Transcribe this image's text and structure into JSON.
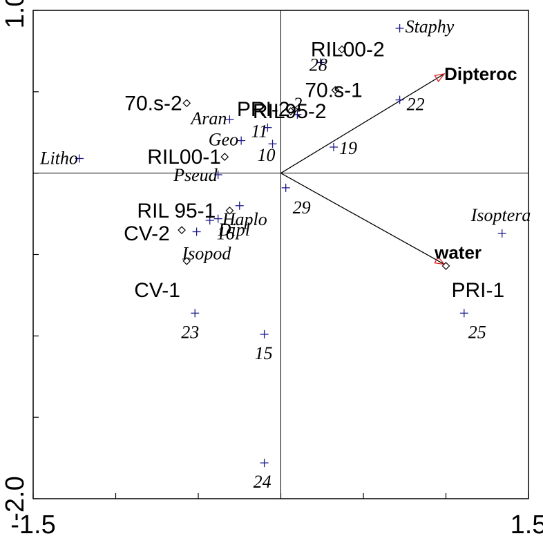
{
  "chart_data": {
    "type": "scatter",
    "title": "",
    "xlabel": "",
    "ylabel": "",
    "xlim": [
      -1.5,
      1.5
    ],
    "ylim": [
      -2.0,
      1.0
    ],
    "x_tick_labels": [
      {
        "value": -1.5,
        "label": "-1.5"
      },
      {
        "value": 1.5,
        "label": "1.5"
      }
    ],
    "y_tick_labels": [
      {
        "value": 1.0,
        "label": "1.0"
      },
      {
        "value": -2.0,
        "label": "-2.0"
      }
    ],
    "y_ticks": [
      1.0,
      0.5,
      0.0,
      -0.5,
      -1.0,
      -1.5,
      -2.0
    ],
    "x_ticks": [
      -1.5,
      -1.0,
      -0.5,
      0.0,
      0.5,
      1.0,
      1.5
    ],
    "species": [
      {
        "label": "Staphy",
        "x": 0.72,
        "y": 0.89
      },
      {
        "label": "Aran",
        "x": -0.31,
        "y": 0.33
      },
      {
        "label": "Geo",
        "x": -0.24,
        "y": 0.2
      },
      {
        "label": "Litho",
        "x": -1.22,
        "y": 0.09
      },
      {
        "label": "Pseud",
        "x": -0.38,
        "y": -0.01
      },
      {
        "label": "Haplo",
        "x": -0.25,
        "y": -0.2
      },
      {
        "label": "Dipl",
        "x": -0.43,
        "y": -0.29
      },
      {
        "label": "Isopod",
        "x": -0.51,
        "y": -0.36
      },
      {
        "label": "Isoptera",
        "x": 1.34,
        "y": -0.37
      }
    ],
    "samples": [
      {
        "label": "28",
        "x": 0.24,
        "y": 0.68
      },
      {
        "label": "22",
        "x": 0.72,
        "y": 0.45
      },
      {
        "label": "11",
        "x": -0.08,
        "y": 0.28
      },
      {
        "label": "10",
        "x": -0.05,
        "y": 0.18
      },
      {
        "label": "19",
        "x": 0.32,
        "y": 0.16
      },
      {
        "label": "29",
        "x": 0.03,
        "y": -0.09
      },
      {
        "label": "16",
        "x": -0.38,
        "y": -0.28
      },
      {
        "label": "23",
        "x": -0.52,
        "y": -0.86
      },
      {
        "label": "15",
        "x": -0.1,
        "y": -0.99
      },
      {
        "label": "24",
        "x": -0.1,
        "y": -1.78
      },
      {
        "label": "25",
        "x": 1.11,
        "y": -0.86
      },
      {
        "label": "2",
        "x": 0.1,
        "y": 0.36
      }
    ],
    "sites": [
      {
        "label": "RIL00-2",
        "x": 0.37,
        "y": 0.76
      },
      {
        "label": "PRI-2",
        "x": 0.08,
        "y": 0.39
      },
      {
        "label": "70.s-1",
        "x": 0.33,
        "y": 0.51
      },
      {
        "label": "RIL95-2",
        "x": 0.06,
        "y": 0.38
      },
      {
        "label": "70.s-2",
        "x": -0.57,
        "y": 0.43
      },
      {
        "label": "RIL00-1",
        "x": -0.34,
        "y": 0.1
      },
      {
        "label": "RIL 95-1",
        "x": -0.31,
        "y": -0.23
      },
      {
        "label": "CV-2",
        "x": -0.6,
        "y": -0.35
      },
      {
        "label": "CV-1",
        "x": -0.57,
        "y": -0.54
      },
      {
        "label": "PRI-1",
        "x": 1.0,
        "y": -0.57
      }
    ],
    "arrows": [
      {
        "label": "Dipteroc",
        "x": 0.99,
        "y": 0.61
      },
      {
        "label": "water",
        "x": 0.99,
        "y": -0.56
      }
    ],
    "colors": {
      "axis": "#000000",
      "point_marker": "#1a1a8c",
      "arrow_head": "#e02020"
    }
  }
}
